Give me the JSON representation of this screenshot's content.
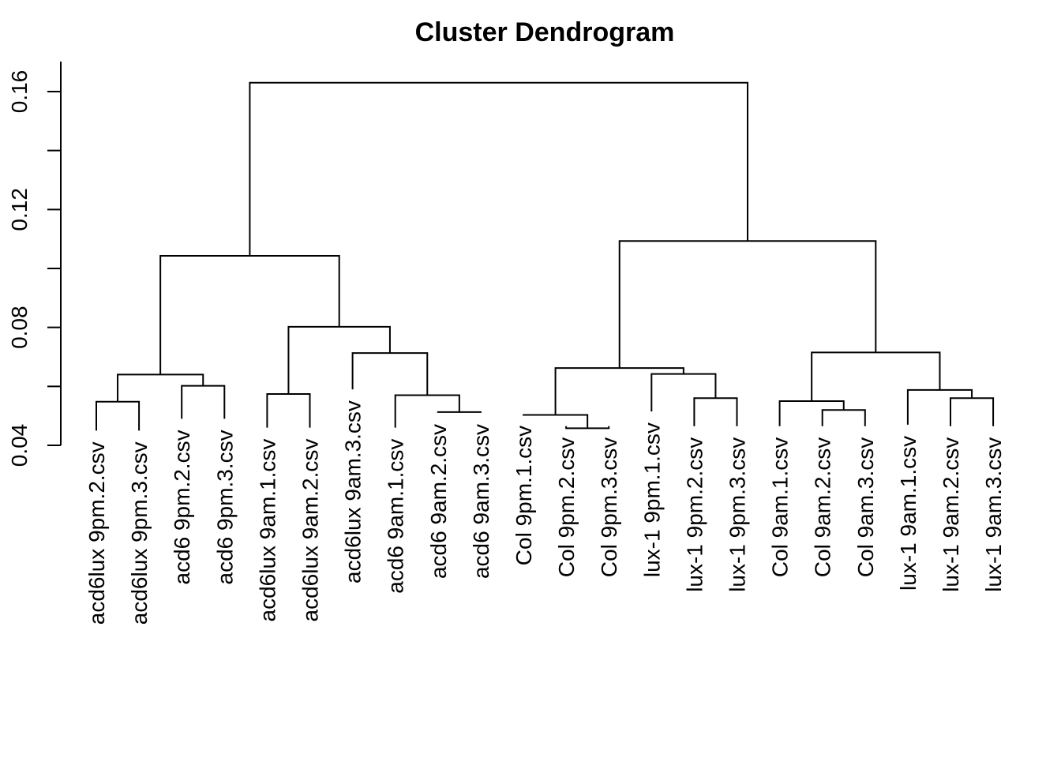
{
  "chart_data": {
    "type": "dendrogram",
    "title": "Cluster Dendrogram",
    "ylabel": "",
    "ylim": [
      0.04,
      0.17
    ],
    "y_ticks": [
      0.04,
      0.08,
      0.12,
      0.16
    ],
    "y_tick_labels": [
      "0.04",
      "0.08",
      "0.12",
      "0.16"
    ],
    "y_minor_ticks": [
      0.06,
      0.1,
      0.14
    ],
    "leaves": [
      "acd6lux 9pm.2.csv",
      "acd6lux 9pm.3.csv",
      "acd6 9pm.2.csv",
      "acd6 9pm.3.csv",
      "acd6lux 9am.1.csv",
      "acd6lux 9am.2.csv",
      "acd6lux 9am.3.csv",
      "acd6 9am.1.csv",
      "acd6 9am.2.csv",
      "acd6 9am.3.csv",
      "Col 9pm.1.csv",
      "Col 9pm.2.csv",
      "Col 9pm.3.csv",
      "lux-1 9pm.1.csv",
      "lux-1 9pm.2.csv",
      "lux-1 9pm.3.csv",
      "Col 9am.1.csv",
      "Col 9am.2.csv",
      "Col 9am.3.csv",
      "lux-1 9am.1.csv",
      "lux-1 9am.2.csv",
      "lux-1 9am.3.csv"
    ],
    "leaf_heights": [
      0.045,
      0.045,
      0.049,
      0.049,
      0.046,
      0.046,
      0.059,
      0.046,
      0.051,
      0.051,
      0.0505,
      0.0465,
      0.0465,
      0.0515,
      0.0465,
      0.0465,
      0.0465,
      0.0465,
      0.0465,
      0.047,
      0.0465,
      0.0465
    ],
    "merges": [
      {
        "id": "m1",
        "left": "L0",
        "right": "L1",
        "height": 0.0548
      },
      {
        "id": "m2",
        "left": "L2",
        "right": "L3",
        "height": 0.0602
      },
      {
        "id": "m3",
        "left": "m1",
        "right": "m2",
        "height": 0.064
      },
      {
        "id": "m4",
        "left": "L4",
        "right": "L5",
        "height": 0.0574
      },
      {
        "id": "m5",
        "left": "L8",
        "right": "L9",
        "height": 0.0513
      },
      {
        "id": "m6",
        "left": "L7",
        "right": "m5",
        "height": 0.057
      },
      {
        "id": "m7",
        "left": "L6",
        "right": "m6",
        "height": 0.0713
      },
      {
        "id": "m8",
        "left": "m4",
        "right": "m7",
        "height": 0.0802
      },
      {
        "id": "m9",
        "left": "m3",
        "right": "m8",
        "height": 0.1043
      },
      {
        "id": "m10",
        "left": "L11",
        "right": "L12",
        "height": 0.0458
      },
      {
        "id": "m11",
        "left": "L10",
        "right": "m10",
        "height": 0.0503
      },
      {
        "id": "m12",
        "left": "L14",
        "right": "L15",
        "height": 0.056
      },
      {
        "id": "m13",
        "left": "L13",
        "right": "m12",
        "height": 0.0642
      },
      {
        "id": "m14",
        "left": "m11",
        "right": "m13",
        "height": 0.0662
      },
      {
        "id": "m15",
        "left": "L17",
        "right": "L18",
        "height": 0.052
      },
      {
        "id": "m16",
        "left": "L16",
        "right": "m15",
        "height": 0.055
      },
      {
        "id": "m17",
        "left": "L20",
        "right": "L21",
        "height": 0.056
      },
      {
        "id": "m18",
        "left": "L19",
        "right": "m17",
        "height": 0.0588
      },
      {
        "id": "m19",
        "left": "m16",
        "right": "m18",
        "height": 0.0715
      },
      {
        "id": "m20",
        "left": "m14",
        "right": "m19",
        "height": 0.1093
      },
      {
        "id": "m21",
        "left": "m9",
        "right": "m20",
        "height": 0.163
      }
    ]
  }
}
